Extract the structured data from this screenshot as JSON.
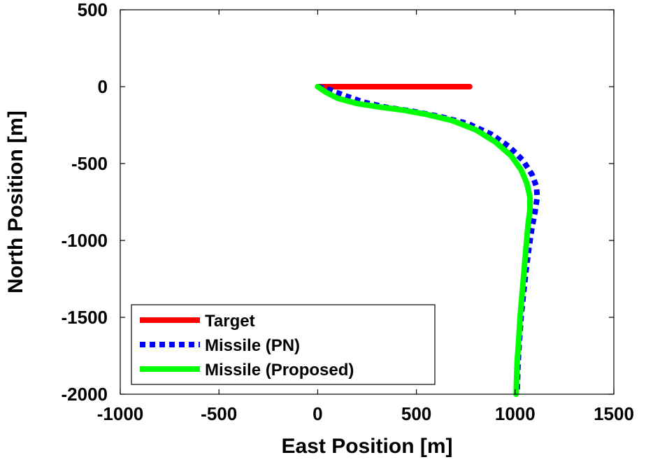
{
  "chart_data": {
    "type": "line",
    "title": "",
    "xlabel": "East Position [m]",
    "ylabel": "North Position [m]",
    "xlim": [
      -1000,
      1500
    ],
    "ylim": [
      -2000,
      500
    ],
    "xticks": [
      -1000,
      -500,
      0,
      500,
      1000,
      1500
    ],
    "yticks": [
      -2000,
      -1500,
      -1000,
      -500,
      0,
      500
    ],
    "xtick_labels": [
      "-1000",
      "-500",
      "0",
      "500",
      "1000",
      "1500"
    ],
    "ytick_labels": [
      "-2000",
      "-1500",
      "-1000",
      "-500",
      "0",
      "500"
    ],
    "grid": false,
    "legend_position": "bottom-left",
    "series": [
      {
        "name": "Target",
        "color": "#ff0000",
        "style": "solid",
        "x": [
          0,
          770
        ],
        "y": [
          0,
          0
        ]
      },
      {
        "name": "Missile (PN)",
        "color": "#0000ff",
        "style": "dotted",
        "x": [
          0,
          60,
          130,
          230,
          350,
          480,
          620,
          760,
          880,
          970,
          1040,
          1085,
          1108,
          1112,
          1100,
          1085,
          1070,
          1055,
          1042,
          1030,
          1022,
          1015,
          1010
        ],
        "y": [
          0,
          -20,
          -55,
          -100,
          -135,
          -160,
          -195,
          -240,
          -310,
          -390,
          -480,
          -570,
          -650,
          -720,
          -820,
          -920,
          -1050,
          -1200,
          -1350,
          -1500,
          -1650,
          -1800,
          -2000
        ]
      },
      {
        "name": "Missile (Proposed)",
        "color": "#00ff00",
        "style": "solid",
        "x": [
          0,
          40,
          100,
          200,
          300,
          420,
          550,
          680,
          800,
          900,
          980,
          1030,
          1060,
          1075,
          1075,
          1065,
          1055,
          1045,
          1035,
          1025,
          1018,
          1010,
          1005
        ],
        "y": [
          0,
          -35,
          -75,
          -110,
          -130,
          -150,
          -180,
          -220,
          -280,
          -360,
          -450,
          -540,
          -630,
          -720,
          -800,
          -900,
          -1050,
          -1200,
          -1350,
          -1500,
          -1650,
          -1800,
          -2000
        ]
      }
    ]
  }
}
